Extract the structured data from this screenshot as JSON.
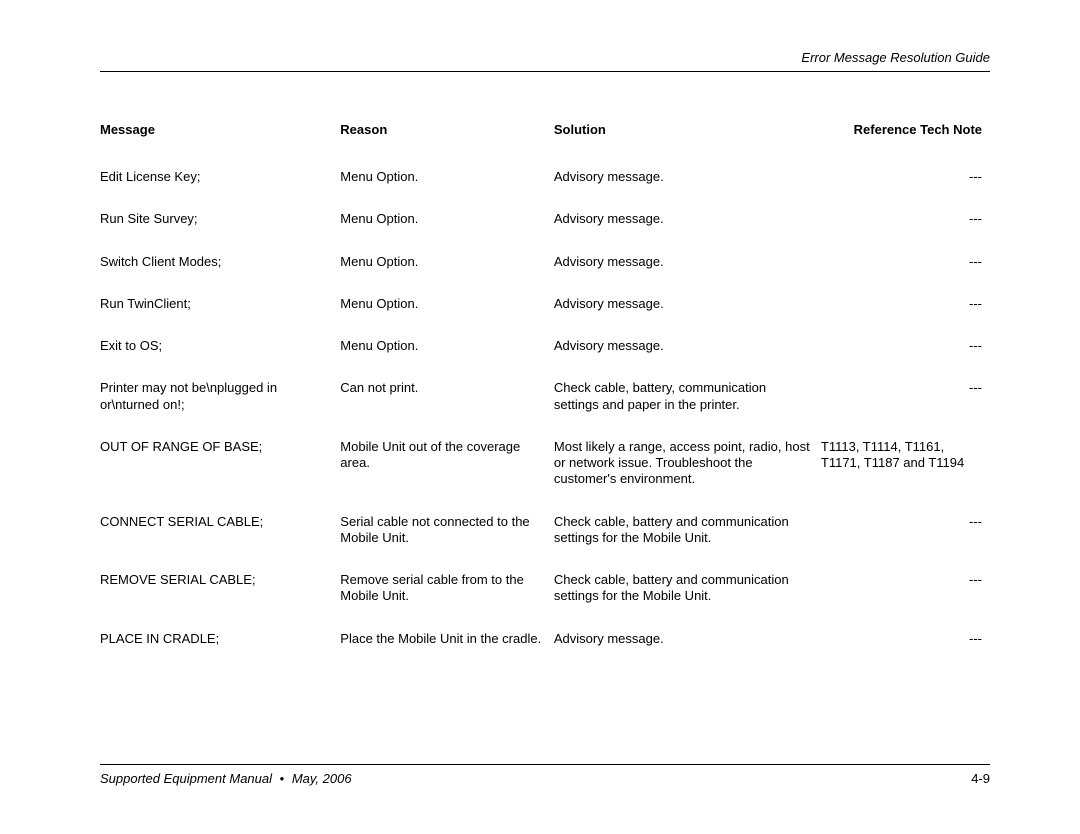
{
  "header": {
    "running_title": "Error Message Resolution Guide"
  },
  "table": {
    "columns": {
      "message": "Message",
      "reason": "Reason",
      "solution": "Solution",
      "reference": "Reference Tech Note"
    },
    "rows": [
      {
        "message": "Edit License Key;",
        "reason": "Menu Option.",
        "solution": "Advisory message.",
        "reference": "---"
      },
      {
        "message": "Run Site Survey;",
        "reason": "Menu Option.",
        "solution": "Advisory message.",
        "reference": "---"
      },
      {
        "message": "Switch Client Modes;",
        "reason": "Menu Option.",
        "solution": "Advisory message.",
        "reference": "---"
      },
      {
        "message": "Run TwinClient;",
        "reason": "Menu Option.",
        "solution": "Advisory message.",
        "reference": "---"
      },
      {
        "message": "Exit to OS;",
        "reason": "Menu Option.",
        "solution": "Advisory message.",
        "reference": "---"
      },
      {
        "message": "Printer may not be\\nplugged in or\\nturned on!;",
        "reason": "Can not print.",
        "solution": "Check cable, battery, communication settings and paper in the printer.",
        "reference": "---"
      },
      {
        "message": "OUT OF RANGE OF BASE;",
        "reason": "Mobile Unit out of the coverage area.",
        "solution": "Most likely a range, access point, radio, host or network issue. Troubleshoot the customer's environment.",
        "reference": "T1113, T1114, T1161, T1171, T1187 and T1194"
      },
      {
        "message": "CONNECT SERIAL CABLE;",
        "reason": "Serial cable not connected to the Mobile Unit.",
        "solution": "Check cable, battery and communication settings for the Mobile Unit.",
        "reference": "---"
      },
      {
        "message": "REMOVE SERIAL CABLE;",
        "reason": "Remove serial cable from to the Mobile Unit.",
        "solution": "Check cable, battery and communication settings for the Mobile Unit.",
        "reference": "---"
      },
      {
        "message": "PLACE IN CRADLE;",
        "reason": "Place the Mobile Unit in the cradle.",
        "solution": "Advisory message.",
        "reference": "---"
      }
    ]
  },
  "footer": {
    "manual": "Supported Equipment Manual",
    "date": "May, 2006",
    "page": "4-9",
    "bullet": "•"
  }
}
